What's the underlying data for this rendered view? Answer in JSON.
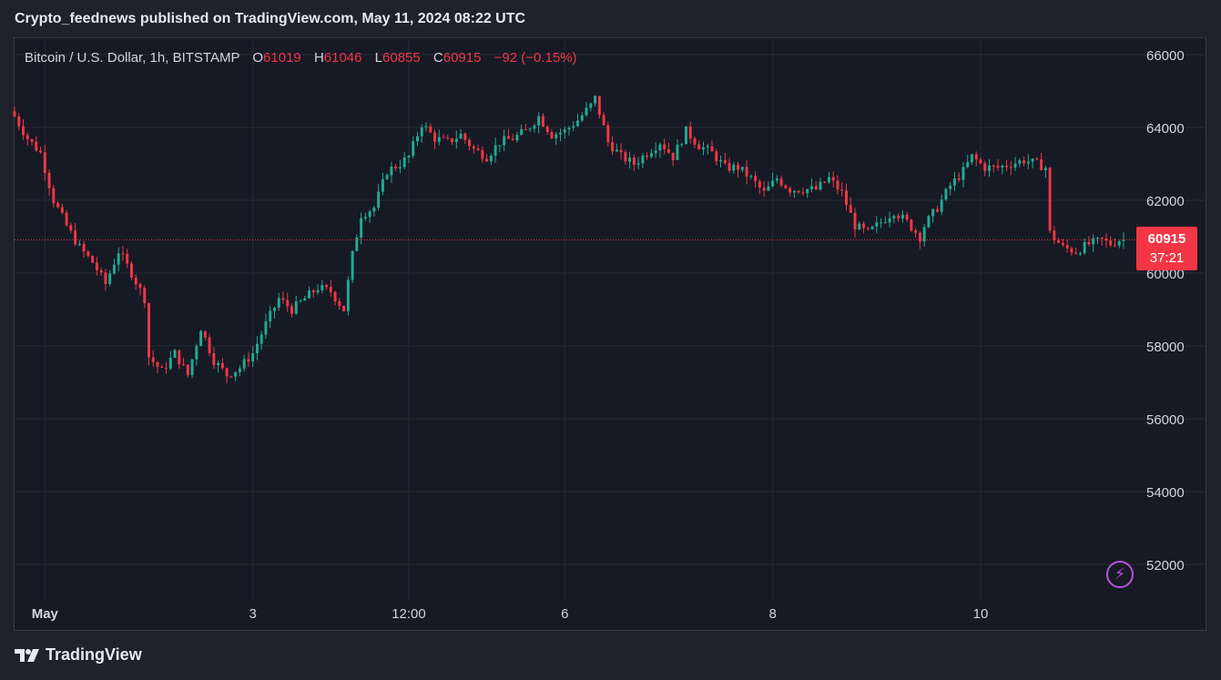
{
  "header": {
    "published_line": "Crypto_feednews published on TradingView.com, May 11, 2024 08:22 UTC"
  },
  "legend": {
    "symbol": "Bitcoin / U.S. Dollar, 1h, BITSTAMP",
    "open_key": "O",
    "open": "61019",
    "high_key": "H",
    "high": "61046",
    "low_key": "L",
    "low": "60855",
    "close_key": "C",
    "close": "60915",
    "change": "−92 (−0.15%)"
  },
  "price_badge": {
    "price": "60915",
    "countdown": "37:21"
  },
  "footer": {
    "brand": "TradingView",
    "logo_icon": "tradingview-logo-icon"
  },
  "icons": {
    "bolt": "lightning-bolt-icon"
  },
  "colors": {
    "up": "#22ab94",
    "down": "#f23645",
    "background": "#161a25",
    "accent": "#b552d9"
  },
  "chart_data": {
    "type": "candlestick",
    "symbol": "BTCUSD",
    "interval": "1h",
    "exchange": "BITSTAMP",
    "y_axis": {
      "ticks": [
        52000,
        54000,
        56000,
        58000,
        60000,
        62000,
        64000,
        66000
      ],
      "tick_labels": [
        "52000",
        "54000",
        "56000",
        "58000",
        "60000",
        "62000",
        "64000",
        "66000"
      ],
      "range": [
        51200,
        66200
      ],
      "position": "right"
    },
    "x_axis": {
      "labels": [
        "May",
        "3",
        "12:00",
        "6",
        "8",
        "10"
      ],
      "range": [
        "2024-04-30 17:00",
        "2024-05-11 09:00"
      ],
      "tick_times": [
        "2024-05-01 00:00",
        "2024-05-03 00:00",
        "2024-05-04 12:00",
        "2024-05-06 00:00",
        "2024-05-08 00:00",
        "2024-05-10 00:00"
      ]
    },
    "last_price": 60915,
    "last_price_line": "dotted",
    "grid": true,
    "close_path": [
      [
        "2024-04-30 17:00",
        64300
      ],
      [
        "2024-04-30 20:00",
        63700
      ],
      [
        "2024-04-30 23:00",
        63300
      ],
      [
        "2024-05-01 02:00",
        62000
      ],
      [
        "2024-05-01 05:00",
        61300
      ],
      [
        "2024-05-01 08:00",
        60700
      ],
      [
        "2024-05-01 11:00",
        60300
      ],
      [
        "2024-05-01 14:00",
        59700
      ],
      [
        "2024-05-01 17:00",
        60600
      ],
      [
        "2024-05-01 20:00",
        60000
      ],
      [
        "2024-05-01 23:00",
        59300
      ],
      [
        "2024-05-02 00:00",
        57700
      ],
      [
        "2024-05-02 03:00",
        57300
      ],
      [
        "2024-05-02 06:00",
        57800
      ],
      [
        "2024-05-02 09:00",
        57200
      ],
      [
        "2024-05-02 12:00",
        58500
      ],
      [
        "2024-05-02 15:00",
        57600
      ],
      [
        "2024-05-02 18:00",
        57200
      ],
      [
        "2024-05-02 21:00",
        57400
      ],
      [
        "2024-05-03 00:00",
        57800
      ],
      [
        "2024-05-03 03:00",
        58600
      ],
      [
        "2024-05-03 06:00",
        59300
      ],
      [
        "2024-05-03 09:00",
        59000
      ],
      [
        "2024-05-03 12:00",
        59300
      ],
      [
        "2024-05-03 15:00",
        59600
      ],
      [
        "2024-05-03 18:00",
        59500
      ],
      [
        "2024-05-03 21:00",
        59000
      ],
      [
        "2024-05-03 23:00",
        60500
      ],
      [
        "2024-05-04 01:00",
        61600
      ],
      [
        "2024-05-04 04:00",
        61800
      ],
      [
        "2024-05-04 07:00",
        62800
      ],
      [
        "2024-05-04 10:00",
        63000
      ],
      [
        "2024-05-04 12:00",
        63200
      ],
      [
        "2024-05-04 15:00",
        64100
      ],
      [
        "2024-05-04 18:00",
        63700
      ],
      [
        "2024-05-04 21:00",
        63600
      ],
      [
        "2024-05-05 00:00",
        63800
      ],
      [
        "2024-05-05 03:00",
        63400
      ],
      [
        "2024-05-05 06:00",
        63200
      ],
      [
        "2024-05-05 09:00",
        63600
      ],
      [
        "2024-05-05 12:00",
        63700
      ],
      [
        "2024-05-05 15:00",
        63900
      ],
      [
        "2024-05-05 18:00",
        64300
      ],
      [
        "2024-05-05 21:00",
        63800
      ],
      [
        "2024-05-06 00:00",
        63900
      ],
      [
        "2024-05-06 03:00",
        64200
      ],
      [
        "2024-05-06 06:00",
        64600
      ],
      [
        "2024-05-06 07:00",
        64800
      ],
      [
        "2024-05-06 10:00",
        63600
      ],
      [
        "2024-05-06 13:00",
        63200
      ],
      [
        "2024-05-06 16:00",
        63000
      ],
      [
        "2024-05-06 19:00",
        63300
      ],
      [
        "2024-05-06 22:00",
        63600
      ],
      [
        "2024-05-07 01:00",
        63200
      ],
      [
        "2024-05-07 04:00",
        63900
      ],
      [
        "2024-05-07 07:00",
        63500
      ],
      [
        "2024-05-07 10:00",
        63300
      ],
      [
        "2024-05-07 13:00",
        62900
      ],
      [
        "2024-05-07 16:00",
        62900
      ],
      [
        "2024-05-07 19:00",
        62600
      ],
      [
        "2024-05-07 22:00",
        62200
      ],
      [
        "2024-05-08 01:00",
        62600
      ],
      [
        "2024-05-08 04:00",
        62300
      ],
      [
        "2024-05-08 07:00",
        62300
      ],
      [
        "2024-05-08 10:00",
        62300
      ],
      [
        "2024-05-08 13:00",
        62600
      ],
      [
        "2024-05-08 16:00",
        62200
      ],
      [
        "2024-05-08 19:00",
        61300
      ],
      [
        "2024-05-08 22:00",
        61100
      ],
      [
        "2024-05-09 01:00",
        61400
      ],
      [
        "2024-05-09 04:00",
        61700
      ],
      [
        "2024-05-09 07:00",
        61400
      ],
      [
        "2024-05-09 10:00",
        61000
      ],
      [
        "2024-05-09 11:00",
        61300
      ],
      [
        "2024-05-09 14:00",
        61800
      ],
      [
        "2024-05-09 17:00",
        62400
      ],
      [
        "2024-05-09 20:00",
        62800
      ],
      [
        "2024-05-09 22:00",
        63200
      ],
      [
        "2024-05-10 01:00",
        62900
      ],
      [
        "2024-05-10 04:00",
        62900
      ],
      [
        "2024-05-10 07:00",
        63000
      ],
      [
        "2024-05-10 10:00",
        63100
      ],
      [
        "2024-05-10 13:00",
        63000
      ],
      [
        "2024-05-10 15:00",
        62900
      ],
      [
        "2024-05-10 16:00",
        61100
      ],
      [
        "2024-05-10 19:00",
        60700
      ],
      [
        "2024-05-10 22:00",
        60600
      ],
      [
        "2024-05-11 01:00",
        60800
      ],
      [
        "2024-05-11 04:00",
        60900
      ],
      [
        "2024-05-11 06:00",
        60800
      ],
      [
        "2024-05-11 08:00",
        60915
      ]
    ]
  }
}
